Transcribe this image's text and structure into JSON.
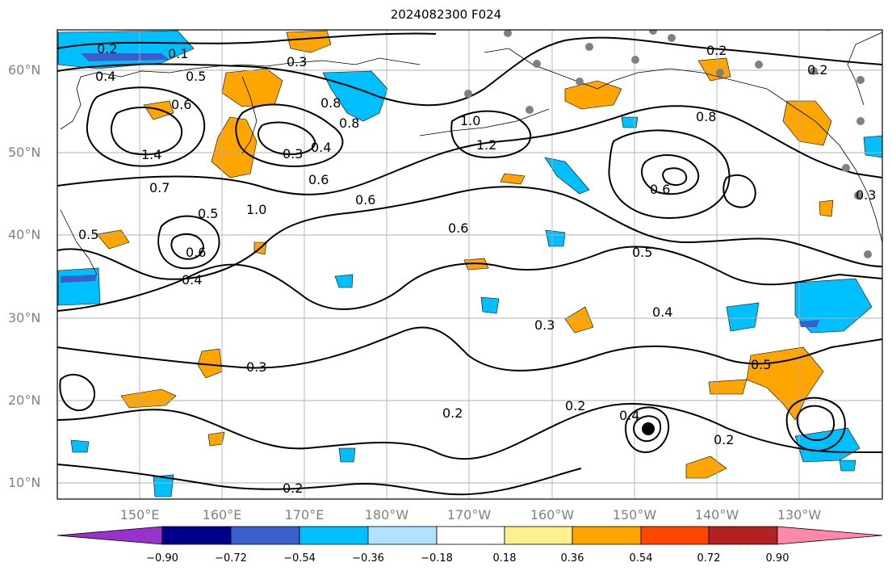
{
  "title": "2024082300 F024",
  "map": {
    "lat_labels": [
      "60°N",
      "50°N",
      "40°N",
      "30°N",
      "20°N",
      "10°N"
    ],
    "lon_labels": [
      "150°E",
      "160°E",
      "170°E",
      "180°W",
      "170°W",
      "160°W",
      "150°W",
      "140°W",
      "130°W"
    ],
    "contour_labels": [
      "0.2",
      "0.1",
      "0.4",
      "0.5",
      "0.3",
      "0.6",
      "0.8",
      "1.0",
      "1.2",
      "1.4",
      "0.7",
      "0.4",
      "0.6",
      "0.3",
      "0.8",
      "0.6",
      "0.5",
      "0.6",
      "0.4",
      "0.3",
      "0.3",
      "0.2",
      "0.5",
      "0.4",
      "0.2",
      "0.5",
      "0.2",
      "0.2",
      "0.4",
      "0.6",
      "0.3",
      "0.2",
      "0.2",
      "0.8",
      "1.0",
      "0.6",
      "0.5"
    ],
    "colors": {
      "land_outline": "#000000",
      "contour": "#000000",
      "grid": "#b0b0b0",
      "station_dot": "#808080",
      "positive_anomaly": "#ffa500",
      "negative_anomaly": "#00bfff",
      "strong_negative": "#3a5fcd"
    }
  },
  "colorbar": {
    "ticks": [
      "−0.90",
      "−0.72",
      "−0.54",
      "−0.36",
      "−0.18",
      "0.18",
      "0.36",
      "0.54",
      "0.72",
      "0.90"
    ],
    "colors": [
      "#9932cc",
      "#00008b",
      "#3a5fcd",
      "#00bfff",
      "#b0e2ff",
      "#ffffff",
      "#fff08f",
      "#ffa500",
      "#ff4500",
      "#b22222",
      "#ff88aa"
    ]
  }
}
